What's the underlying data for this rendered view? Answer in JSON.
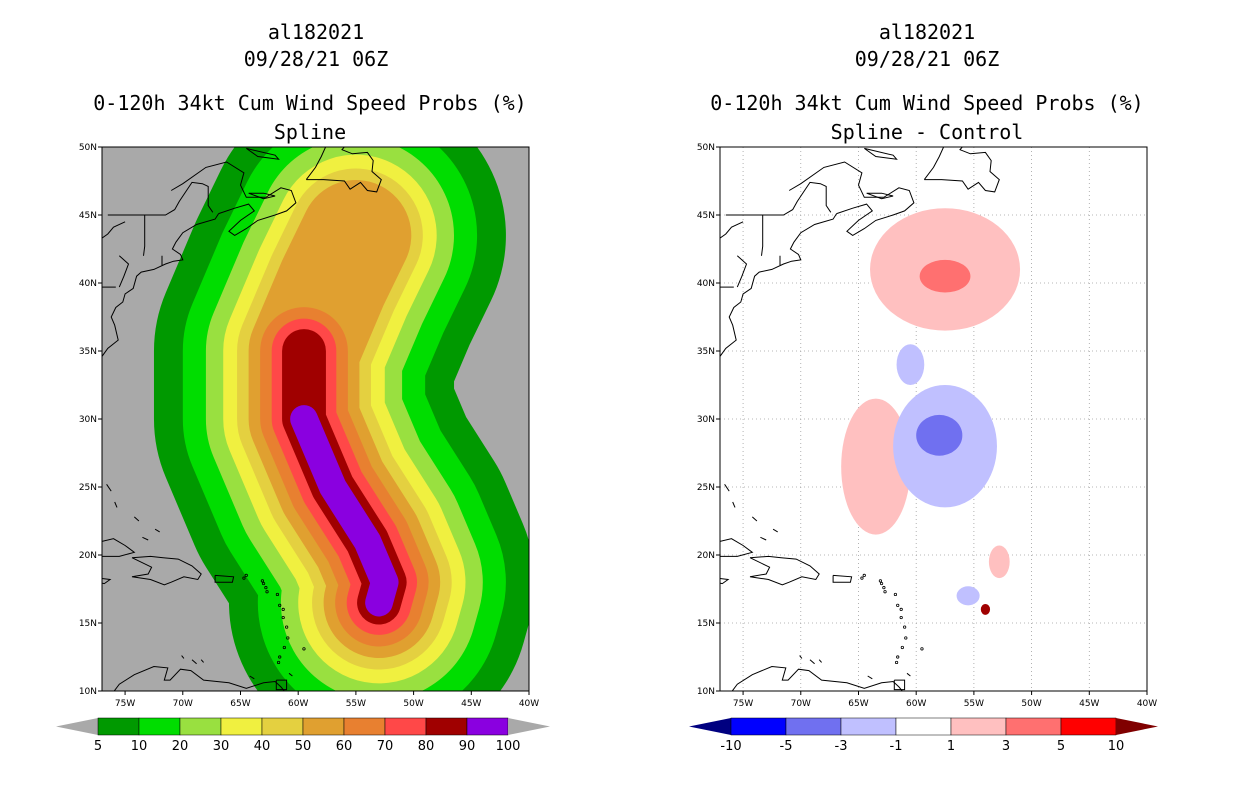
{
  "colors": {
    "land_bg": "#a9a9a9",
    "ocean_bg": "#ffffff",
    "coast": "#000000",
    "grid": "#a0a0a0"
  },
  "chart_data": [
    {
      "type": "heatmap",
      "storm_id": "al182021",
      "datetime": "09/28/21 06Z",
      "title": "0-120h 34kt Cum Wind Speed Probs (%)",
      "subtitle": "Spline",
      "x_ticks": [
        "75W",
        "70W",
        "65W",
        "60W",
        "55W",
        "50W",
        "45W",
        "40W"
      ],
      "y_ticks": [
        "10N",
        "15N",
        "20N",
        "25N",
        "30N",
        "35N",
        "40N",
        "45N",
        "50N"
      ],
      "xlim_lon": [
        -77,
        -40
      ],
      "ylim_lat": [
        10,
        50
      ],
      "grid": false,
      "colorbar": {
        "labels": [
          "5",
          "10",
          "20",
          "30",
          "40",
          "50",
          "60",
          "70",
          "80",
          "90",
          "100"
        ],
        "colors": [
          "#009900",
          "#00dd00",
          "#99e040",
          "#f0f040",
          "#e4d040",
          "#e0a030",
          "#e88030",
          "#ff4848",
          "#a00000",
          "#8a00e0"
        ],
        "extend_color": "#a9a9a9"
      },
      "track": [
        [
          -53.0,
          16.5
        ],
        [
          -52.5,
          18.0
        ],
        [
          -54.0,
          21.0
        ],
        [
          -57.0,
          25.0
        ],
        [
          -59.5,
          30.0
        ],
        [
          -59.5,
          35.0
        ],
        [
          -57.0,
          40.0
        ],
        [
          -55.0,
          43.5
        ]
      ],
      "contours": [
        {
          "level": 5,
          "color": "#009900",
          "width_deg": 13.0
        },
        {
          "level": 10,
          "color": "#00dd00",
          "width_deg": 10.5
        },
        {
          "level": 20,
          "color": "#99e040",
          "width_deg": 8.5
        },
        {
          "level": 30,
          "color": "#f0f040",
          "width_deg": 7.0
        },
        {
          "level": 40,
          "color": "#e4d040",
          "width_deg": 5.8
        },
        {
          "level": 50,
          "color": "#e0a030",
          "width_deg": 4.8
        },
        {
          "level": 60,
          "color": "#e88030",
          "width_deg": 3.8
        },
        {
          "level": 70,
          "color": "#ff4848",
          "width_deg": 2.8
        },
        {
          "level": 80,
          "color": "#a00000",
          "width_deg": 1.9
        },
        {
          "level": 90,
          "color": "#8a00e0",
          "width_deg": 1.2
        }
      ]
    },
    {
      "type": "heatmap",
      "storm_id": "al182021",
      "datetime": "09/28/21 06Z",
      "title": "0-120h 34kt Cum Wind Speed Probs (%)",
      "subtitle": "Spline - Control",
      "x_ticks": [
        "75W",
        "70W",
        "65W",
        "60W",
        "55W",
        "50W",
        "45W",
        "40W"
      ],
      "y_ticks": [
        "10N",
        "15N",
        "20N",
        "25N",
        "30N",
        "35N",
        "40N",
        "45N",
        "50N"
      ],
      "xlim_lon": [
        -77,
        -40
      ],
      "ylim_lat": [
        10,
        50
      ],
      "grid": true,
      "colorbar": {
        "labels": [
          "-10",
          "-5",
          "-3",
          "-1",
          "1",
          "3",
          "5",
          "10"
        ],
        "colors": [
          "#0000ff",
          "#7070f0",
          "#c0c0ff",
          "#ffffff",
          "#ffc0c0",
          "#ff7070",
          "#ff0000"
        ],
        "extend_left_color": "#000080",
        "extend_right_color": "#800000"
      },
      "blobs": [
        {
          "name": "north-positive",
          "color": "#ffc0c0",
          "lon": -57.5,
          "lat": 41.0,
          "rx": 6.5,
          "ry": 4.5
        },
        {
          "name": "north-positive-core",
          "color": "#ff7070",
          "lon": -57.5,
          "lat": 40.5,
          "rx": 2.2,
          "ry": 1.2
        },
        {
          "name": "west-positive",
          "color": "#ffc0c0",
          "lon": -63.5,
          "lat": 26.5,
          "rx": 3.0,
          "ry": 5.0
        },
        {
          "name": "center-negative",
          "color": "#c0c0ff",
          "lon": -57.5,
          "lat": 28.0,
          "rx": 4.5,
          "ry": 4.5
        },
        {
          "name": "center-negative-core",
          "color": "#7070f0",
          "lon": -58.0,
          "lat": 28.8,
          "rx": 2.0,
          "ry": 1.5
        },
        {
          "name": "north-negative",
          "color": "#c0c0ff",
          "lon": -60.5,
          "lat": 34.0,
          "rx": 1.2,
          "ry": 1.5
        },
        {
          "name": "south-positive",
          "color": "#ffc0c0",
          "lon": -52.8,
          "lat": 19.5,
          "rx": 0.9,
          "ry": 1.2
        },
        {
          "name": "south-negative",
          "color": "#c0c0ff",
          "lon": -55.5,
          "lat": 17.0,
          "rx": 1.0,
          "ry": 0.7
        },
        {
          "name": "south-strong-positive",
          "color": "#a00000",
          "lon": -54.0,
          "lat": 16.0,
          "rx": 0.4,
          "ry": 0.4
        }
      ]
    }
  ]
}
